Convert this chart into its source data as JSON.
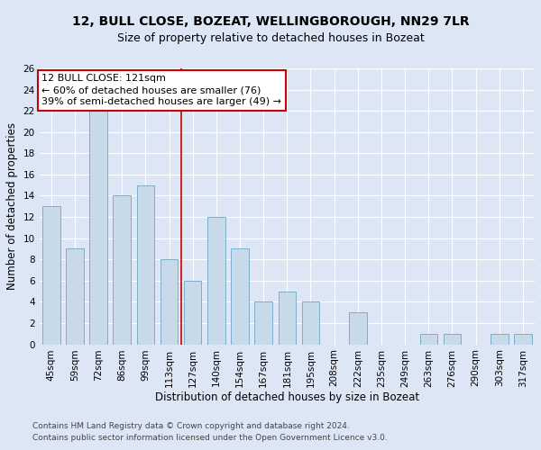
{
  "title1": "12, BULL CLOSE, BOZEAT, WELLINGBOROUGH, NN29 7LR",
  "title2": "Size of property relative to detached houses in Bozeat",
  "xlabel": "Distribution of detached houses by size in Bozeat",
  "ylabel": "Number of detached properties",
  "footnote1": "Contains HM Land Registry data © Crown copyright and database right 2024.",
  "footnote2": "Contains public sector information licensed under the Open Government Licence v3.0.",
  "categories": [
    "45sqm",
    "59sqm",
    "72sqm",
    "86sqm",
    "99sqm",
    "113sqm",
    "127sqm",
    "140sqm",
    "154sqm",
    "167sqm",
    "181sqm",
    "195sqm",
    "208sqm",
    "222sqm",
    "235sqm",
    "249sqm",
    "263sqm",
    "276sqm",
    "290sqm",
    "303sqm",
    "317sqm"
  ],
  "values": [
    13,
    9,
    22,
    14,
    15,
    8,
    6,
    12,
    9,
    4,
    5,
    4,
    0,
    3,
    0,
    0,
    1,
    1,
    0,
    1,
    1
  ],
  "bar_color": "#c8d9ea",
  "bar_edge_color": "#7faec8",
  "vline_index": 6,
  "vline_color": "#cc0000",
  "annotation_line1": "12 BULL CLOSE: 121sqm",
  "annotation_line2": "← 60% of detached houses are smaller (76)",
  "annotation_line3": "39% of semi-detached houses are larger (49) →",
  "annotation_box_color": "white",
  "annotation_box_edge_color": "#cc0000",
  "ylim": [
    0,
    26
  ],
  "yticks": [
    0,
    2,
    4,
    6,
    8,
    10,
    12,
    14,
    16,
    18,
    20,
    22,
    24,
    26
  ],
  "background_color": "#dce6f5",
  "plot_background_color": "#dce6f5",
  "grid_color": "white",
  "title1_fontsize": 10,
  "title2_fontsize": 9,
  "xlabel_fontsize": 8.5,
  "ylabel_fontsize": 8.5,
  "tick_fontsize": 7.5,
  "annotation_fontsize": 8,
  "footnote_fontsize": 6.5
}
